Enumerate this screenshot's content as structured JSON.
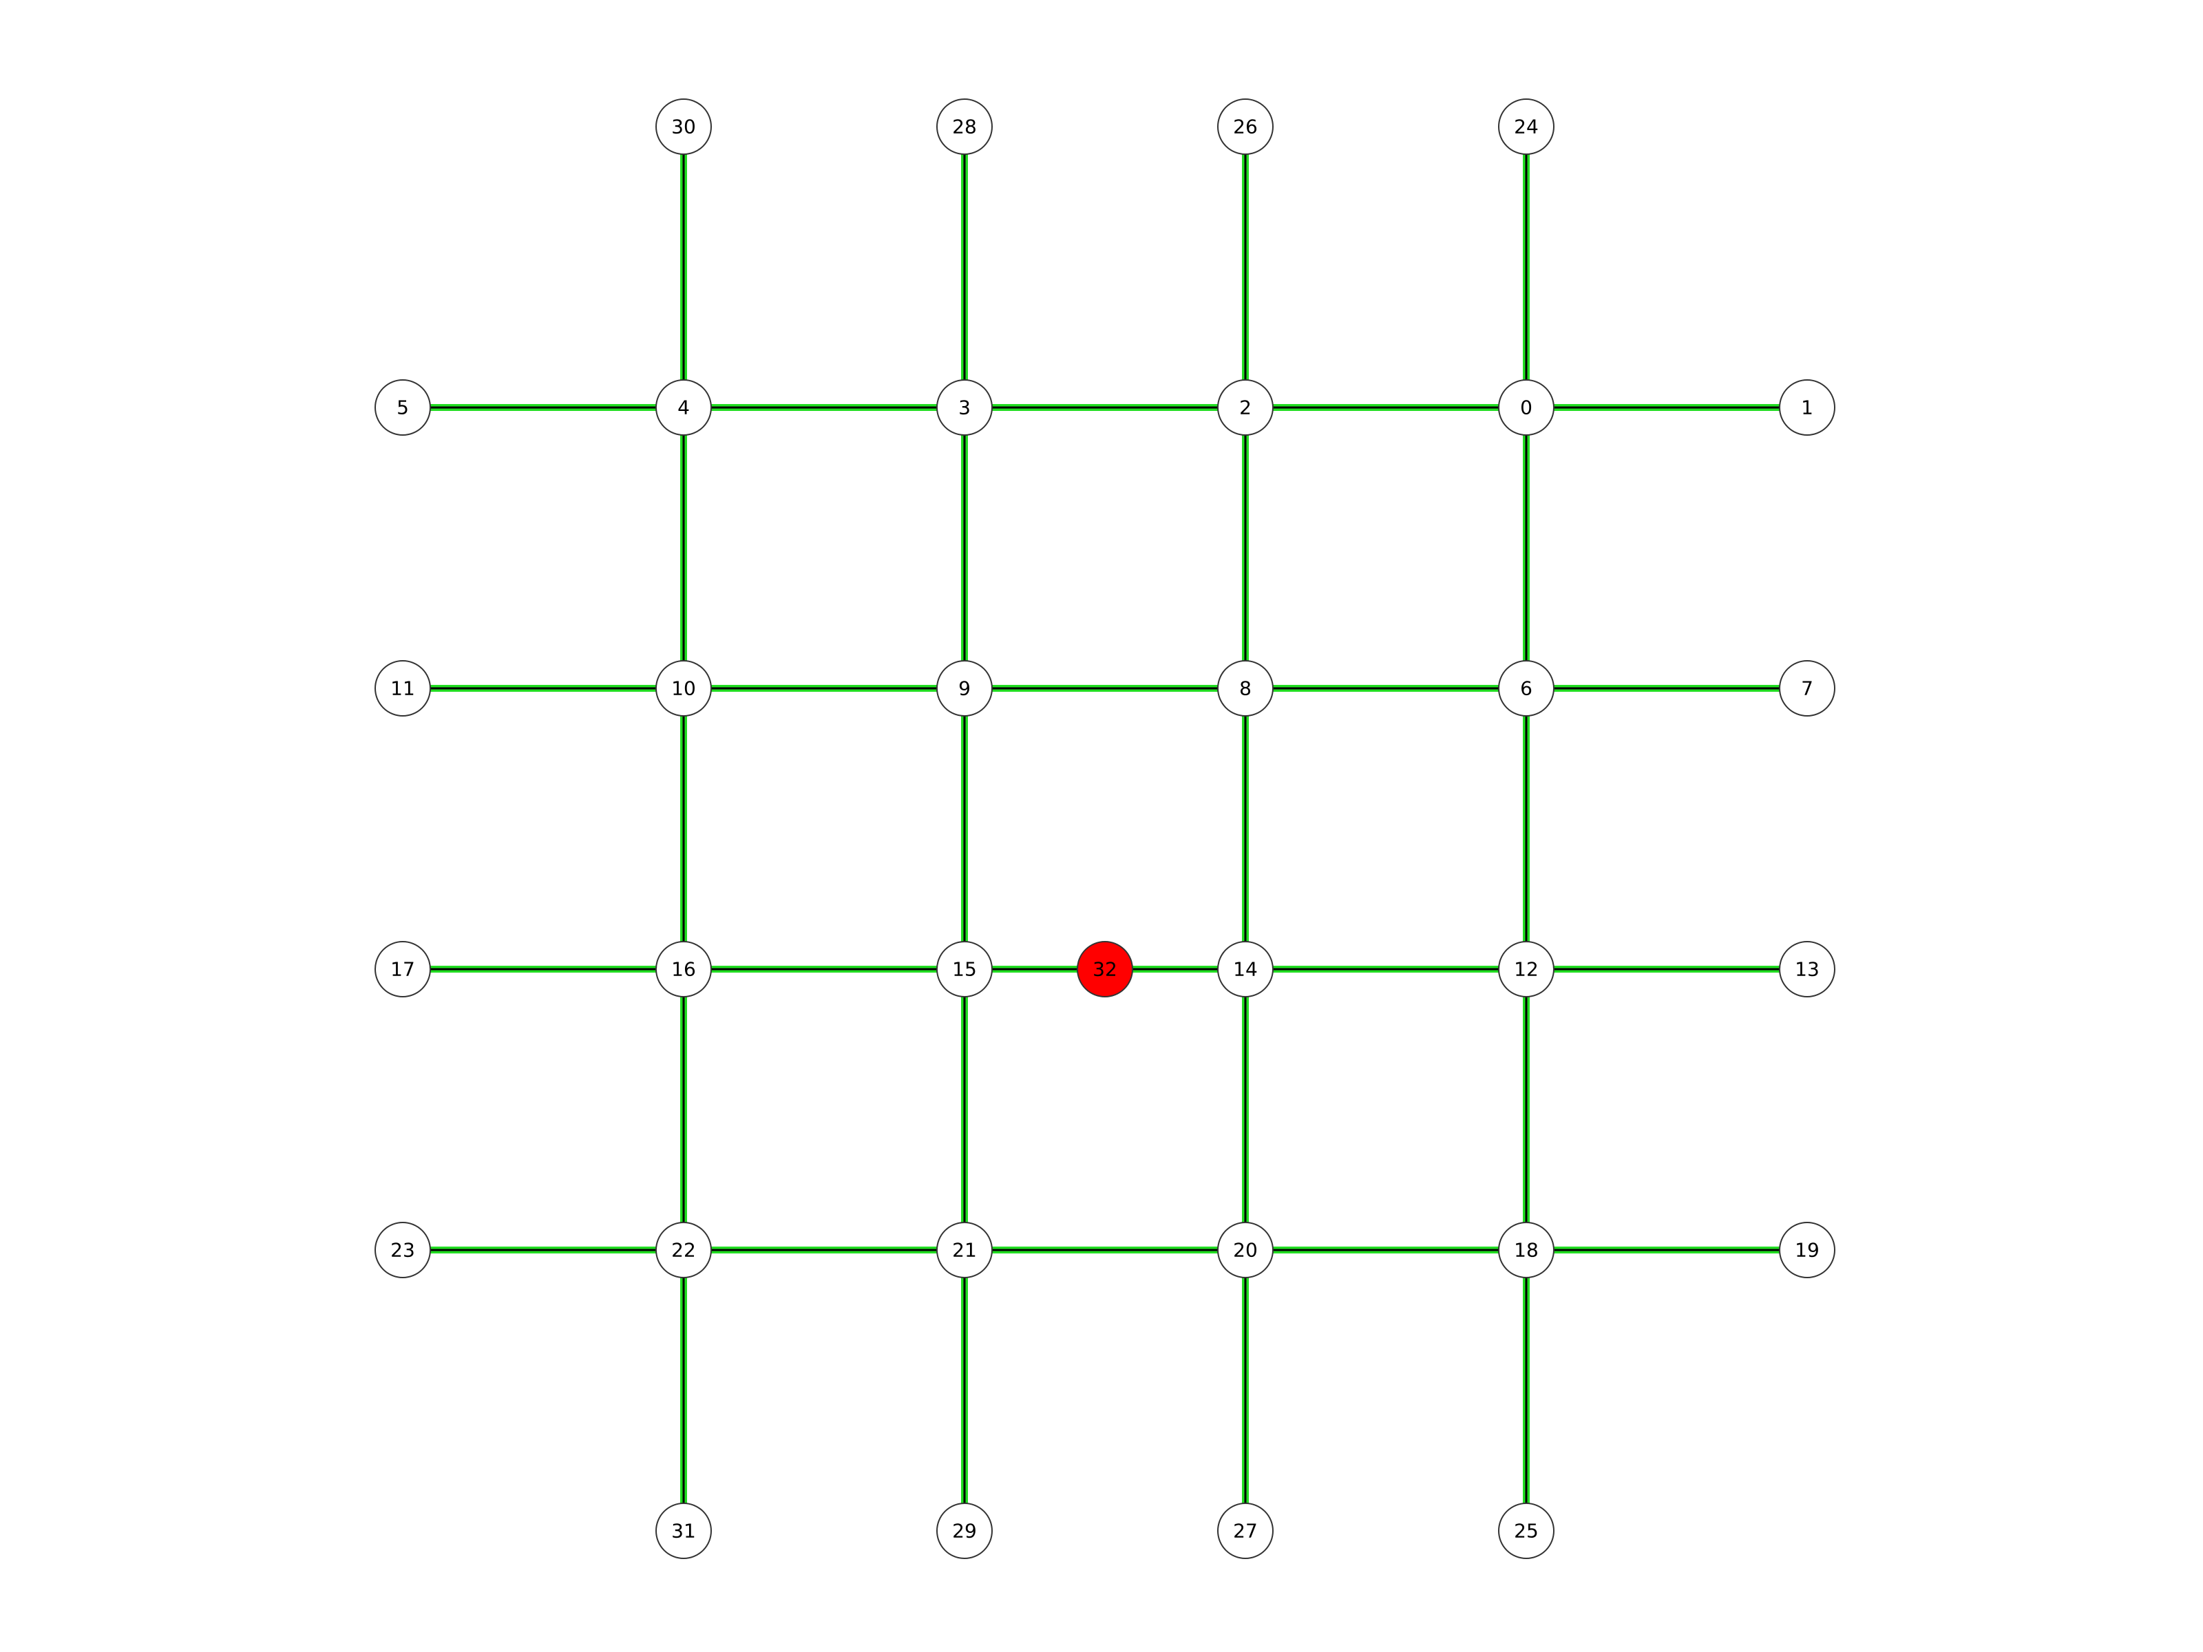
{
  "colors": {
    "background": "#ffffff",
    "edge_outer": "#22dd22",
    "edge_inner": "#000000",
    "node_fill": "#ffffff",
    "node_stroke": "#333333",
    "highlight_node_fill": "#ff0000"
  },
  "graph": {
    "grid_columns": 6,
    "grid_rows": 6,
    "nodes": [
      {
        "id": "30",
        "label": "30",
        "col": 1,
        "row": 0
      },
      {
        "id": "28",
        "label": "28",
        "col": 2,
        "row": 0
      },
      {
        "id": "26",
        "label": "26",
        "col": 3,
        "row": 0
      },
      {
        "id": "24",
        "label": "24",
        "col": 4,
        "row": 0
      },
      {
        "id": "5",
        "label": "5",
        "col": 0,
        "row": 1
      },
      {
        "id": "4",
        "label": "4",
        "col": 1,
        "row": 1
      },
      {
        "id": "3",
        "label": "3",
        "col": 2,
        "row": 1
      },
      {
        "id": "2",
        "label": "2",
        "col": 3,
        "row": 1
      },
      {
        "id": "0",
        "label": "0",
        "col": 4,
        "row": 1
      },
      {
        "id": "1",
        "label": "1",
        "col": 5,
        "row": 1
      },
      {
        "id": "11",
        "label": "11",
        "col": 0,
        "row": 2
      },
      {
        "id": "10",
        "label": "10",
        "col": 1,
        "row": 2
      },
      {
        "id": "9",
        "label": "9",
        "col": 2,
        "row": 2
      },
      {
        "id": "8",
        "label": "8",
        "col": 3,
        "row": 2
      },
      {
        "id": "6",
        "label": "6",
        "col": 4,
        "row": 2
      },
      {
        "id": "7",
        "label": "7",
        "col": 5,
        "row": 2
      },
      {
        "id": "17",
        "label": "17",
        "col": 0,
        "row": 3
      },
      {
        "id": "16",
        "label": "16",
        "col": 1,
        "row": 3
      },
      {
        "id": "15",
        "label": "15",
        "col": 2,
        "row": 3
      },
      {
        "id": "32",
        "label": "32",
        "col": 2.5,
        "row": 3,
        "highlight": true
      },
      {
        "id": "14",
        "label": "14",
        "col": 3,
        "row": 3
      },
      {
        "id": "12",
        "label": "12",
        "col": 4,
        "row": 3
      },
      {
        "id": "13",
        "label": "13",
        "col": 5,
        "row": 3
      },
      {
        "id": "23",
        "label": "23",
        "col": 0,
        "row": 4
      },
      {
        "id": "22",
        "label": "22",
        "col": 1,
        "row": 4
      },
      {
        "id": "21",
        "label": "21",
        "col": 2,
        "row": 4
      },
      {
        "id": "20",
        "label": "20",
        "col": 3,
        "row": 4
      },
      {
        "id": "18",
        "label": "18",
        "col": 4,
        "row": 4
      },
      {
        "id": "19",
        "label": "19",
        "col": 5,
        "row": 4
      },
      {
        "id": "31",
        "label": "31",
        "col": 1,
        "row": 5
      },
      {
        "id": "29",
        "label": "29",
        "col": 2,
        "row": 5
      },
      {
        "id": "27",
        "label": "27",
        "col": 3,
        "row": 5
      },
      {
        "id": "25",
        "label": "25",
        "col": 4,
        "row": 5
      }
    ],
    "edges": [
      [
        "30",
        "4"
      ],
      [
        "28",
        "3"
      ],
      [
        "26",
        "2"
      ],
      [
        "24",
        "0"
      ],
      [
        "5",
        "4"
      ],
      [
        "4",
        "3"
      ],
      [
        "3",
        "2"
      ],
      [
        "2",
        "0"
      ],
      [
        "0",
        "1"
      ],
      [
        "4",
        "10"
      ],
      [
        "3",
        "9"
      ],
      [
        "2",
        "8"
      ],
      [
        "0",
        "6"
      ],
      [
        "11",
        "10"
      ],
      [
        "10",
        "9"
      ],
      [
        "9",
        "8"
      ],
      [
        "8",
        "6"
      ],
      [
        "6",
        "7"
      ],
      [
        "10",
        "16"
      ],
      [
        "9",
        "15"
      ],
      [
        "8",
        "14"
      ],
      [
        "6",
        "12"
      ],
      [
        "17",
        "16"
      ],
      [
        "16",
        "15"
      ],
      [
        "15",
        "32"
      ],
      [
        "32",
        "14"
      ],
      [
        "14",
        "12"
      ],
      [
        "12",
        "13"
      ],
      [
        "16",
        "22"
      ],
      [
        "15",
        "21"
      ],
      [
        "14",
        "20"
      ],
      [
        "12",
        "18"
      ],
      [
        "23",
        "22"
      ],
      [
        "22",
        "21"
      ],
      [
        "21",
        "20"
      ],
      [
        "20",
        "18"
      ],
      [
        "18",
        "19"
      ],
      [
        "22",
        "31"
      ],
      [
        "21",
        "29"
      ],
      [
        "20",
        "27"
      ],
      [
        "18",
        "25"
      ]
    ]
  }
}
